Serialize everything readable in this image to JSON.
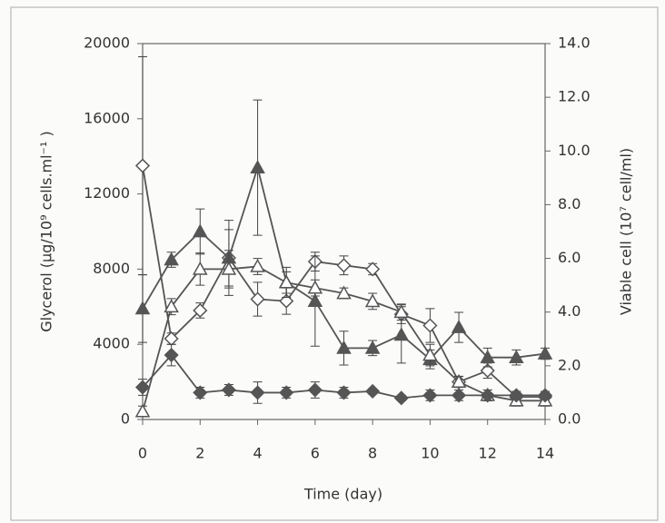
{
  "chart_data": {
    "type": "line",
    "xlabel": "Time (day)",
    "ylabel": "Glycerol (µg/10⁹ cells.ml⁻¹ )",
    "y2label": "Viable cell (10⁷ cell/ml)",
    "x": [
      0,
      1,
      2,
      3,
      4,
      5,
      6,
      7,
      8,
      9,
      10,
      11,
      12,
      13,
      14
    ],
    "xlim": [
      0,
      14
    ],
    "xticks": [
      0,
      2,
      4,
      6,
      8,
      10,
      12,
      14
    ],
    "ylim": [
      0,
      20000
    ],
    "yticks": [
      0,
      4000,
      8000,
      12000,
      16000,
      20000
    ],
    "y2lim": [
      0,
      14
    ],
    "y2ticks": [
      {
        "value": 0,
        "label": "0.0"
      },
      {
        "value": 2,
        "label": "2.0"
      },
      {
        "value": 4,
        "label": "4.0"
      },
      {
        "value": 6,
        "label": "6.0"
      },
      {
        "value": 8,
        "label": "8.0"
      },
      {
        "value": 10,
        "label": "10.0"
      },
      {
        "value": 12,
        "label": "12.0"
      },
      {
        "value": 14,
        "label": "14.0"
      }
    ],
    "series": [
      {
        "color": "#555555",
        "marker": "diamond-open",
        "values": [
          13500,
          4300,
          5800,
          8600,
          6400,
          6300,
          8400,
          8200,
          8000,
          5600,
          5000,
          2000,
          2600,
          1200,
          1200
        ],
        "errors": [
          5800,
          300,
          400,
          1500,
          900,
          700,
          500,
          500,
          300,
          500,
          900,
          300,
          400,
          300,
          300
        ]
      },
      {
        "color": "#555555",
        "marker": "triangle-filled",
        "values": [
          5900,
          8500,
          10000,
          8600,
          13400,
          7300,
          6300,
          3800,
          3800,
          4500,
          3200,
          4900,
          3300,
          3300,
          3500
        ],
        "errors": [
          1800,
          400,
          1200,
          2000,
          3600,
          800,
          2400,
          900,
          400,
          1500,
          500,
          800,
          500,
          400,
          300
        ]
      },
      {
        "color": "#555555",
        "marker": "triangle-open",
        "axis": "y2",
        "values": [
          0.3,
          4.2,
          5.6,
          5.6,
          5.7,
          5.1,
          4.9,
          4.7,
          4.4,
          4.0,
          2.4,
          1.4,
          0.9,
          0.7,
          0.7
        ],
        "errors": [
          0.2,
          0.3,
          0.6,
          0.7,
          0.3,
          0.4,
          0.3,
          0.2,
          0.3,
          0.3,
          0.4,
          0.2,
          0.2,
          0.2,
          0.2
        ]
      },
      {
        "color": "#555555",
        "marker": "diamond-filled",
        "axis": "y2",
        "values": [
          1.2,
          2.4,
          1.0,
          1.1,
          1.0,
          1.0,
          1.1,
          1.0,
          1.05,
          0.8,
          0.9,
          0.9,
          0.9,
          0.9,
          0.9
        ],
        "errors": [
          0.3,
          0.4,
          0.2,
          0.2,
          0.4,
          0.2,
          0.3,
          0.2,
          0.1,
          0.1,
          0.2,
          0.2,
          0.2,
          0.1,
          0.1
        ]
      }
    ]
  }
}
